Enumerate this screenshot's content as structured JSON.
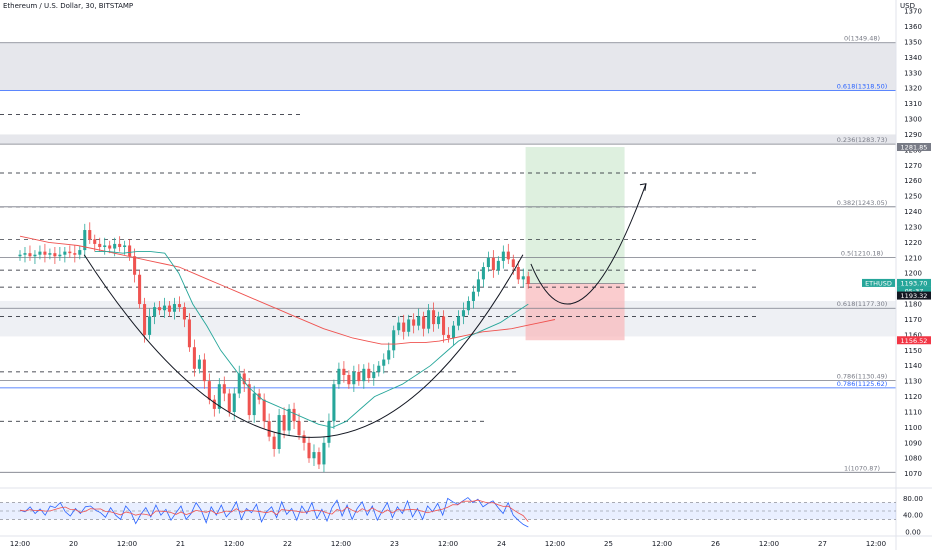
{
  "header": {
    "symbol_title": "Ethereum / U.S. Dollar, 30, BITSTAMP",
    "currency": "USD"
  },
  "chart_data": {
    "type": "line",
    "title": "Ethereum / U.S. Dollar, 30, BITSTAMP",
    "ylabel": "USD",
    "ylim": [
      1062,
      1372
    ],
    "y_ticks": [
      1070,
      1080,
      1090,
      1100,
      1110,
      1120,
      1130,
      1140,
      1150,
      1160,
      1170,
      1180,
      1190,
      1200,
      1210,
      1220,
      1230,
      1240,
      1250,
      1260,
      1270,
      1280,
      1290,
      1300,
      1310,
      1320,
      1330,
      1340,
      1350,
      1360,
      1370
    ],
    "x_ticks": [
      {
        "label": "12:00",
        "t": 0
      },
      {
        "label": "20",
        "t": 1
      },
      {
        "label": "12:00",
        "t": 2
      },
      {
        "label": "21",
        "t": 3
      },
      {
        "label": "12:00",
        "t": 4
      },
      {
        "label": "22",
        "t": 5
      },
      {
        "label": "12:00",
        "t": 6
      },
      {
        "label": "23",
        "t": 7
      },
      {
        "label": "12:00",
        "t": 8
      },
      {
        "label": "24",
        "t": 9
      },
      {
        "label": "12:00",
        "t": 10
      },
      {
        "label": "25",
        "t": 11
      },
      {
        "label": "12:00",
        "t": 12
      },
      {
        "label": "26",
        "t": 13
      },
      {
        "label": "12:00",
        "t": 14
      },
      {
        "label": "27",
        "t": 15
      },
      {
        "label": "12:00",
        "t": 16
      }
    ],
    "fib_levels": [
      {
        "label": "0(1349.48)",
        "price": 1349.48,
        "color": "#787b86"
      },
      {
        "label": "0.618(1318.50)",
        "price": 1318.5,
        "color": "#2962ff"
      },
      {
        "label": "0.236(1283.73)",
        "price": 1283.73,
        "color": "#787b86"
      },
      {
        "label": "0.382(1243.05)",
        "price": 1243.05,
        "color": "#787b86"
      },
      {
        "label": "0.5(1210.18)",
        "price": 1210.18,
        "color": "#787b86"
      },
      {
        "label": "0.618(1177.30)",
        "price": 1177.3,
        "color": "#787b86"
      },
      {
        "label": "0.786(1130.49)",
        "price": 1130.49,
        "color": "#787b86"
      },
      {
        "label": "0.786(1125.62)",
        "price": 1125.62,
        "color": "#2962ff"
      },
      {
        "label": "1(1070.87)",
        "price": 1070.87,
        "color": "#787b86"
      }
    ],
    "zones": [
      {
        "from": 1318.5,
        "to": 1349.48,
        "color": "#d1d4dc"
      },
      {
        "from": 1283.73,
        "to": 1290,
        "color": "#d1d4dc"
      },
      {
        "from": 1159,
        "to": 1182,
        "color": "#e0e3eb"
      }
    ],
    "dashed_levels": [
      1303,
      1265,
      1243,
      1222,
      1202,
      1191,
      1172,
      1136,
      1104
    ],
    "position": {
      "entry": 1193.32,
      "target": 1281.85,
      "stop": 1156.52,
      "t_start": 9.45,
      "t_end": 11.3
    },
    "price_labels": [
      {
        "text": "1281.85",
        "price": 1281.85,
        "bg": "#787b86"
      },
      {
        "text": "ETHUSD",
        "price": 1193.7,
        "bg": "#26a69a"
      },
      {
        "text": "1193.70",
        "price": 1193.7,
        "bg": "#26a69a"
      },
      {
        "text": "05:37",
        "price": 1188.6,
        "bg": "#26a69a"
      },
      {
        "text": "1193.32",
        "price": 1185.5,
        "bg": "#131722"
      },
      {
        "text": "1156.52",
        "price": 1156.52,
        "bg": "#f23645"
      }
    ],
    "candles": {
      "t_start": 0,
      "t_end": 9.5,
      "close": [
        1212,
        1213,
        1211,
        1212,
        1214,
        1212,
        1213,
        1211,
        1212,
        1214,
        1213,
        1212,
        1215,
        1228,
        1222,
        1219,
        1217,
        1218,
        1216,
        1219,
        1217,
        1218,
        1211,
        1199,
        1180,
        1160,
        1172,
        1178,
        1176,
        1179,
        1175,
        1180,
        1178,
        1170,
        1152,
        1138,
        1144,
        1130,
        1118,
        1112,
        1128,
        1122,
        1110,
        1122,
        1135,
        1128,
        1108,
        1122,
        1118,
        1104,
        1094,
        1086,
        1108,
        1098,
        1112,
        1104,
        1095,
        1090,
        1080,
        1084,
        1076,
        1090,
        1104,
        1128,
        1138,
        1134,
        1128,
        1136,
        1130,
        1138,
        1132,
        1136,
        1140,
        1144,
        1150,
        1163,
        1168,
        1162,
        1170,
        1166,
        1172,
        1164,
        1176,
        1167,
        1172,
        1160,
        1158,
        1166,
        1172,
        1176,
        1182,
        1188,
        1196,
        1204,
        1210,
        1202,
        1208,
        1214,
        1209,
        1204,
        1196,
        1198,
        1193
      ],
      "ema_red": [
        1224,
        1222,
        1220,
        1219,
        1218,
        1216,
        1214,
        1212,
        1210,
        1208,
        1206,
        1204,
        1200,
        1196,
        1192,
        1188,
        1184,
        1180,
        1176,
        1172,
        1168,
        1164,
        1161,
        1158,
        1156,
        1154,
        1154,
        1155,
        1155,
        1156,
        1158,
        1160,
        1162,
        1163,
        1164,
        1166,
        1168,
        1170
      ],
      "ema_green": [
        1214,
        1214,
        1213,
        1214,
        1214,
        1213,
        1200,
        1180,
        1166,
        1150,
        1138,
        1126,
        1118,
        1114,
        1110,
        1106,
        1102,
        1100,
        1104,
        1112,
        1120,
        1124,
        1128,
        1134,
        1140,
        1148,
        1156,
        1160,
        1164,
        1168,
        1174,
        1180
      ]
    },
    "rsi": {
      "ylim": [
        0,
        100
      ],
      "ticks": [
        0,
        40,
        80
      ],
      "tick_labels": [
        "0.00",
        "40.00",
        "80.00"
      ],
      "band": [
        30,
        70
      ],
      "values": [
        52,
        48,
        60,
        44,
        55,
        40,
        62,
        58,
        70,
        48,
        38,
        56,
        44,
        60,
        62,
        52,
        46,
        35,
        58,
        40,
        30,
        62,
        48,
        20,
        42,
        58,
        36,
        64,
        40,
        54,
        28,
        46,
        62,
        30,
        44,
        70,
        52,
        22,
        60,
        40,
        64,
        36,
        50,
        72,
        30,
        56,
        46,
        66,
        24,
        48,
        60,
        34,
        72,
        42,
        56,
        28,
        62,
        44,
        70,
        32,
        54,
        26,
        58,
        76,
        38,
        64,
        30,
        56,
        72,
        40,
        62,
        28,
        50,
        70,
        34,
        60,
        44,
        74,
        36,
        56,
        30,
        62,
        48,
        68,
        40,
        80,
        72,
        66,
        74,
        82,
        70,
        78,
        60,
        68,
        74,
        58,
        44,
        70,
        40,
        28,
        18,
        12
      ]
    }
  }
}
